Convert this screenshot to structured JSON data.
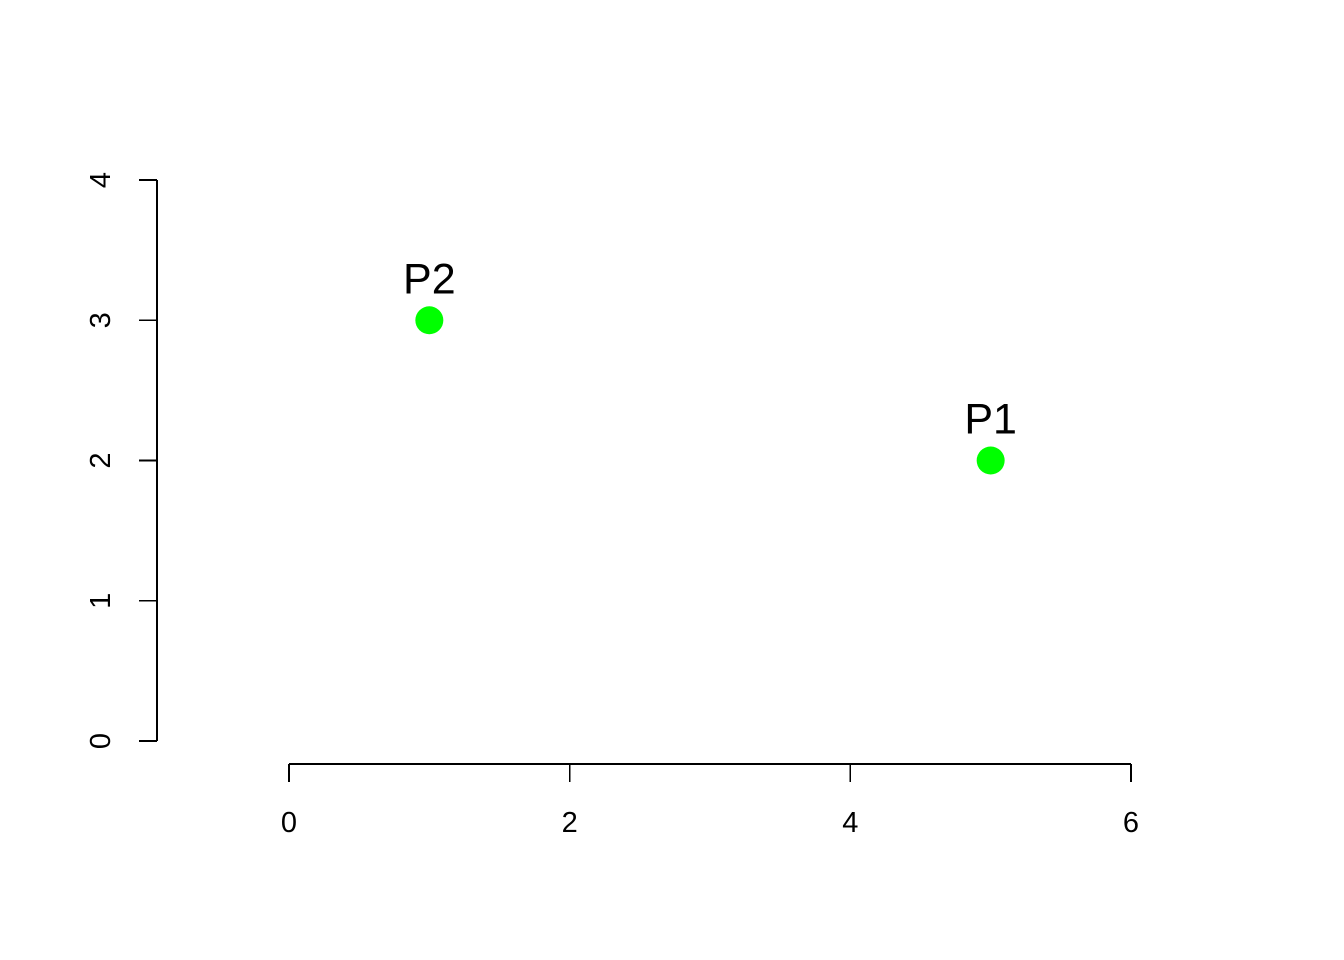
{
  "chart_data": {
    "type": "scatter",
    "title": "",
    "xlabel": "",
    "ylabel": "",
    "xlim": [
      0,
      6
    ],
    "ylim": [
      0,
      4
    ],
    "x_ticks": [
      "0",
      "2",
      "4",
      "6"
    ],
    "y_ticks": [
      "0",
      "1",
      "2",
      "3",
      "4"
    ],
    "grid": false,
    "legend": "none",
    "point_color": "#00ff00",
    "points": [
      {
        "label": "P1",
        "x": 5,
        "y": 2
      },
      {
        "label": "P2",
        "x": 1,
        "y": 3
      }
    ]
  }
}
